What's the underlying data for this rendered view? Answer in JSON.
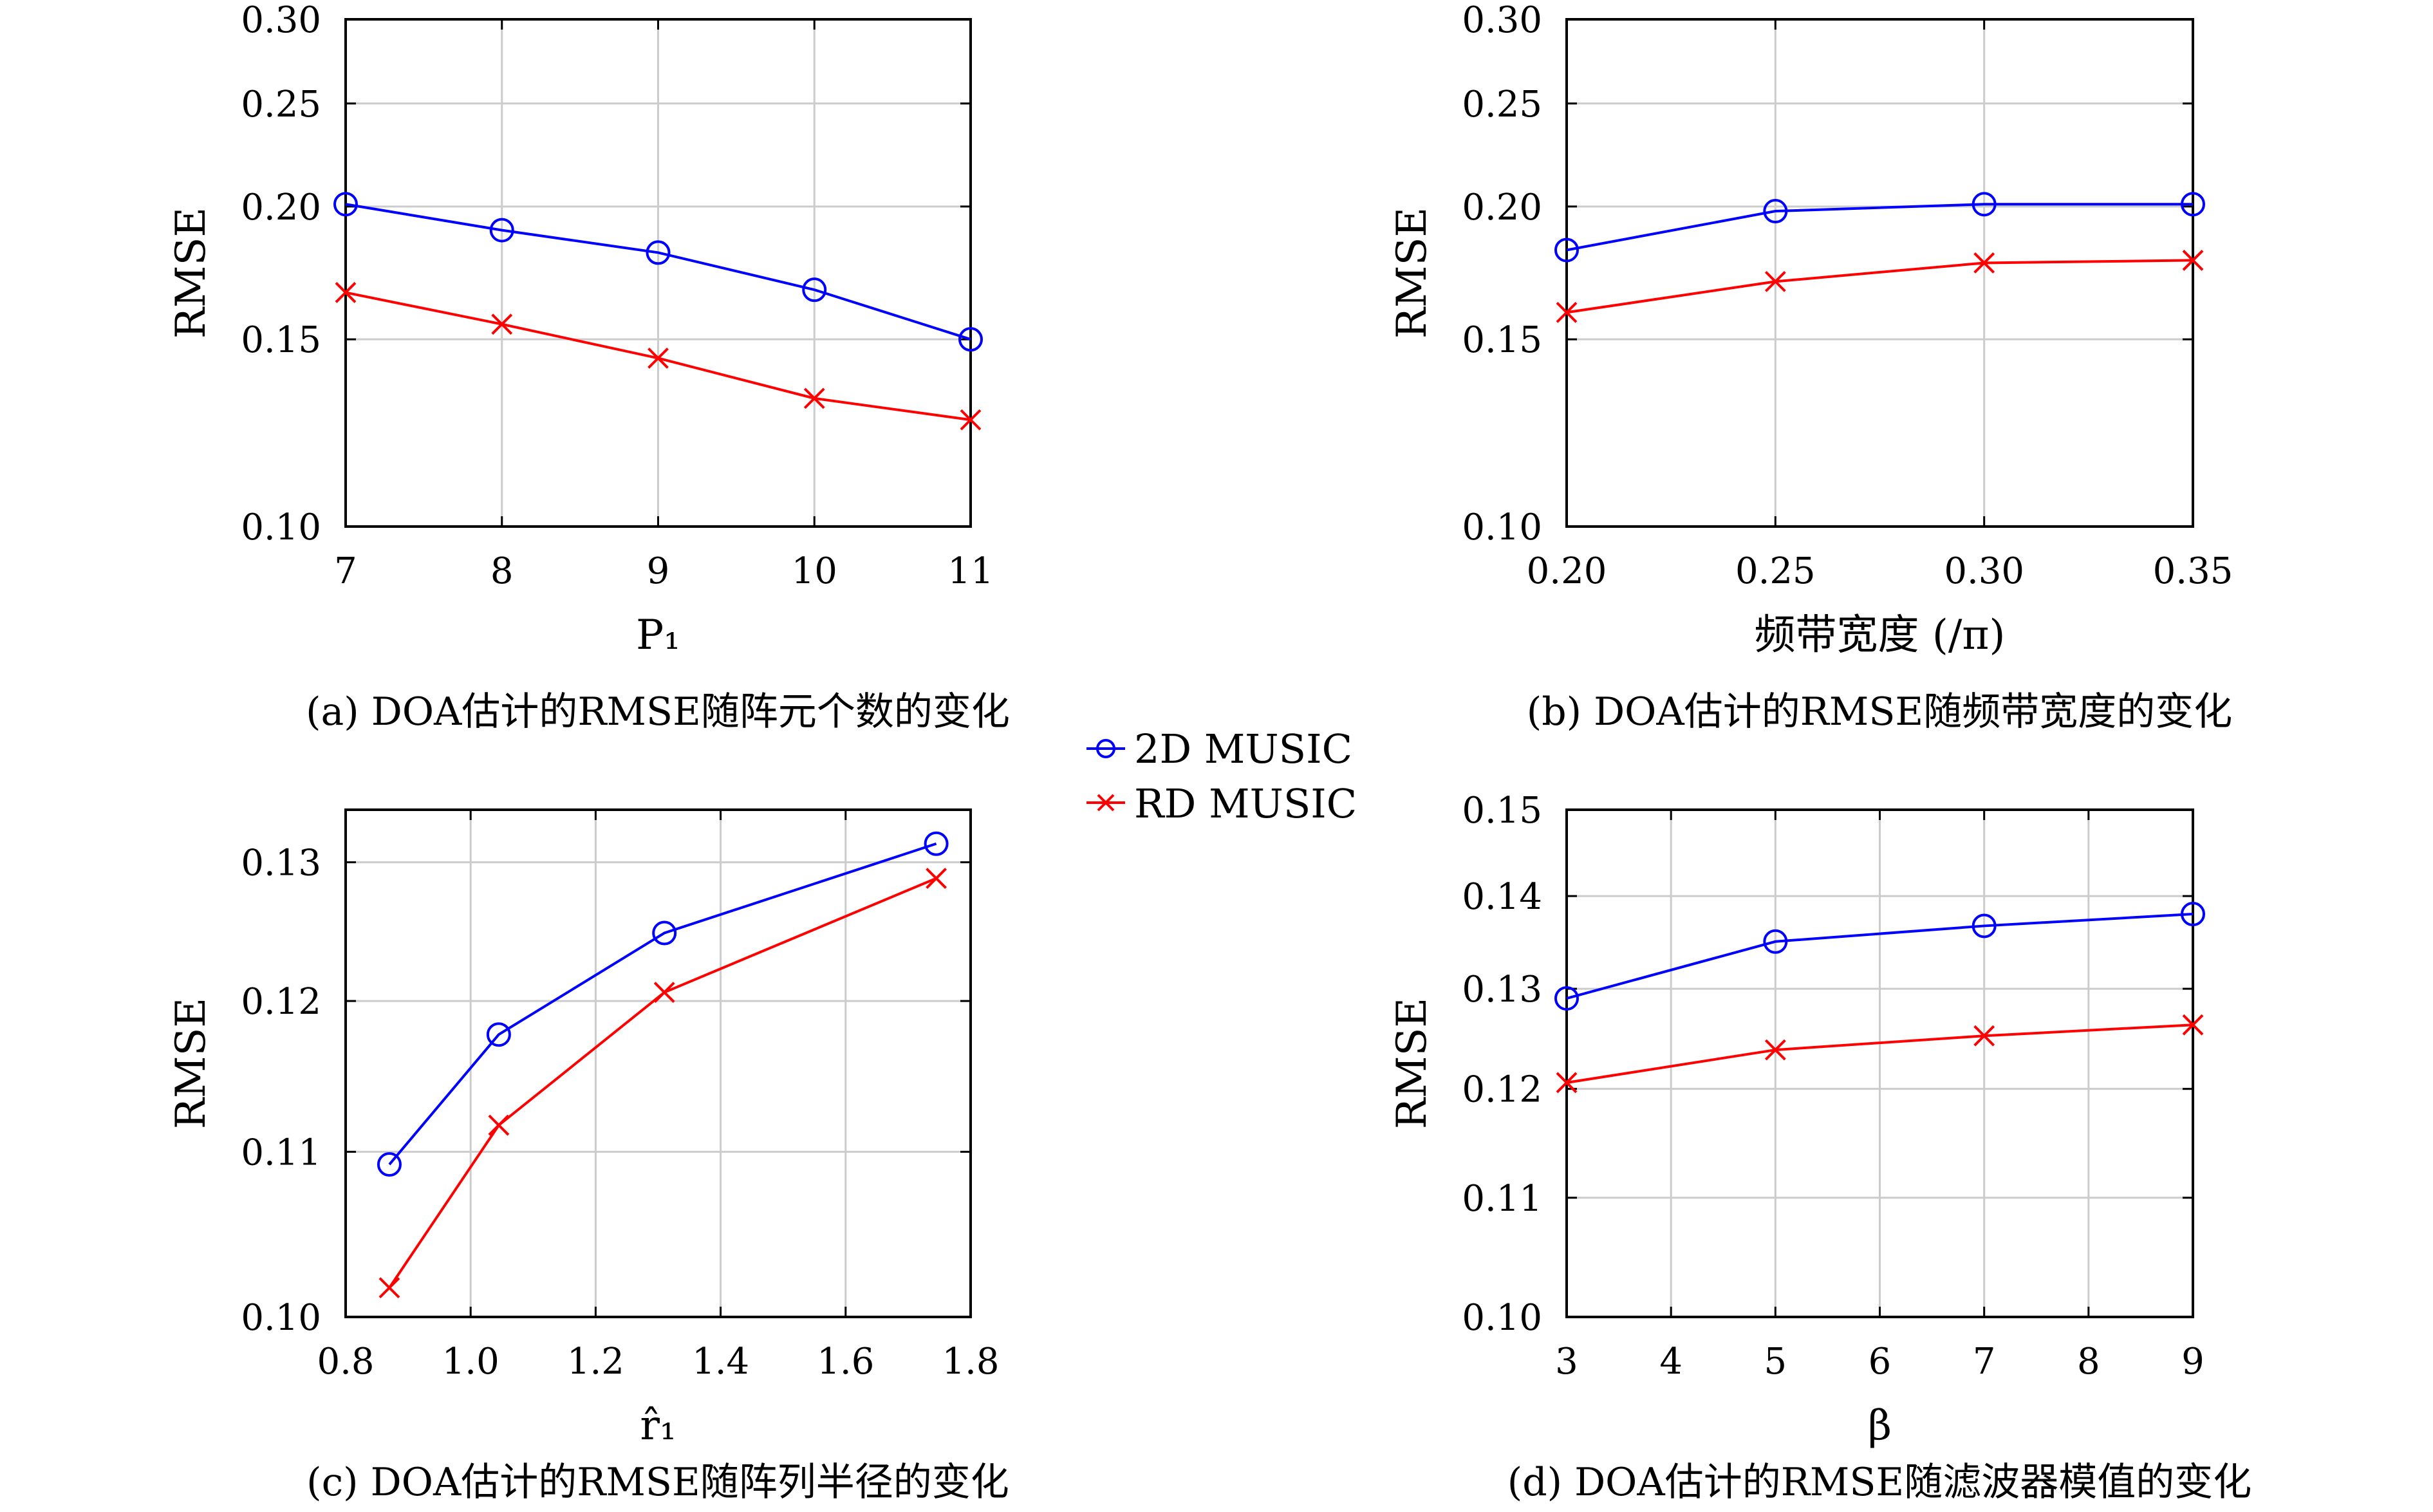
{
  "legend": {
    "series1": "2D MUSIC",
    "series2": "RD MUSIC",
    "series1_color": "#0000ff",
    "series2_color": "#ff0000",
    "series1_marker": "circle",
    "series2_marker": "x"
  },
  "chart_data": [
    {
      "type": "line",
      "caption": "(a) DOA估计的RMSE随阵元个数的变化",
      "xlabel": "P₁",
      "ylabel": "RMSE",
      "y_scale": "log",
      "xlim": [
        7,
        11
      ],
      "ylim": [
        0.1,
        0.3
      ],
      "xticks": [
        7,
        8,
        9,
        10,
        11
      ],
      "xtick_labels": [
        "7",
        "8",
        "9",
        "10",
        "11"
      ],
      "yticks": [
        0.1,
        0.15,
        0.2,
        0.25,
        0.3
      ],
      "ytick_labels": [
        "0.10",
        "0.15",
        "0.20",
        "0.25",
        "0.30"
      ],
      "grid": true,
      "x": [
        7,
        8,
        9,
        10,
        11
      ],
      "series": [
        {
          "name": "2D MUSIC",
          "values": [
            0.201,
            0.19,
            0.181,
            0.167,
            0.15
          ]
        },
        {
          "name": "RD MUSIC",
          "values": [
            0.166,
            0.155,
            0.144,
            0.132,
            0.126
          ]
        }
      ]
    },
    {
      "type": "line",
      "caption": "(b) DOA估计的RMSE随频带宽度的变化",
      "xlabel": "频带宽度 (/π)",
      "ylabel": "RMSE",
      "y_scale": "log",
      "xlim": [
        0.2,
        0.35
      ],
      "ylim": [
        0.1,
        0.3
      ],
      "xticks": [
        0.2,
        0.25,
        0.3,
        0.35
      ],
      "xtick_labels": [
        "0.20",
        "0.25",
        "0.30",
        "0.35"
      ],
      "yticks": [
        0.1,
        0.15,
        0.2,
        0.25,
        0.3
      ],
      "ytick_labels": [
        "0.10",
        "0.15",
        "0.20",
        "0.25",
        "0.30"
      ],
      "grid": true,
      "x": [
        0.2,
        0.25,
        0.3,
        0.35
      ],
      "series": [
        {
          "name": "2D MUSIC",
          "values": [
            0.182,
            0.198,
            0.201,
            0.201
          ]
        },
        {
          "name": "RD MUSIC",
          "values": [
            0.159,
            0.17,
            0.177,
            0.178
          ]
        }
      ]
    },
    {
      "type": "line",
      "caption": "(c) DOA估计的RMSE随阵列半径的变化",
      "xlabel": "r̂₁",
      "ylabel": "RMSE",
      "y_scale": "log",
      "xlim": [
        0.8,
        1.8
      ],
      "ylim": [
        0.1,
        0.134
      ],
      "xticks": [
        0.8,
        1.0,
        1.2,
        1.4,
        1.6,
        1.8
      ],
      "xtick_labels": [
        "0.8",
        "1.0",
        "1.2",
        "1.4",
        "1.6",
        "1.8"
      ],
      "yticks": [
        0.1,
        0.11,
        0.12,
        0.13
      ],
      "ytick_labels": [
        "0.10",
        "0.11",
        "0.12",
        "0.13"
      ],
      "grid": true,
      "x": [
        0.87,
        1.045,
        1.31,
        1.745
      ],
      "series": [
        {
          "name": "2D MUSIC",
          "values": [
            0.1092,
            0.1177,
            0.1248,
            0.1314
          ]
        },
        {
          "name": "RD MUSIC",
          "values": [
            0.1017,
            0.1117,
            0.1206,
            0.1288
          ]
        }
      ]
    },
    {
      "type": "line",
      "caption": "(d) DOA估计的RMSE随滤波器模值的变化",
      "xlabel": "β",
      "ylabel": "RMSE",
      "y_scale": "log",
      "xlim": [
        3,
        9
      ],
      "ylim": [
        0.1,
        0.15
      ],
      "xticks": [
        3,
        4,
        5,
        6,
        7,
        8,
        9
      ],
      "xtick_labels": [
        "3",
        "4",
        "5",
        "6",
        "7",
        "8",
        "9"
      ],
      "yticks": [
        0.1,
        0.11,
        0.12,
        0.13,
        0.14,
        0.15
      ],
      "ytick_labels": [
        "0.10",
        "0.11",
        "0.12",
        "0.13",
        "0.14",
        "0.15"
      ],
      "grid": true,
      "x": [
        3,
        5,
        7,
        9
      ],
      "series": [
        {
          "name": "2D MUSIC",
          "values": [
            0.129,
            0.135,
            0.1367,
            0.138
          ]
        },
        {
          "name": "RD MUSIC",
          "values": [
            0.1206,
            0.1238,
            0.1252,
            0.1263
          ]
        }
      ]
    }
  ]
}
